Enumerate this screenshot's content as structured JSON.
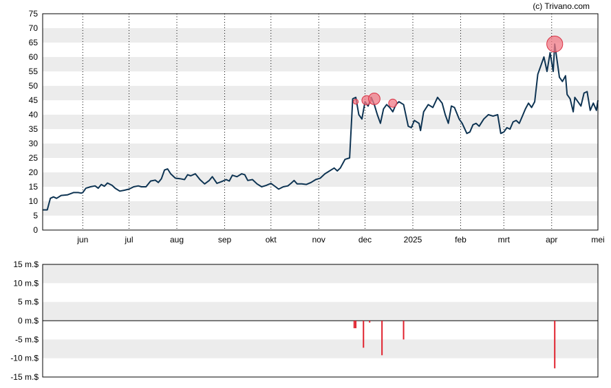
{
  "credit": "(c) Trivano.com",
  "colors": {
    "price_line": "#0d3352",
    "band": "#ececec",
    "vgrid": "#000000",
    "bubble_fill": "#f07a86",
    "bubble_stroke": "#d93043",
    "flow_bar": "#e0202c"
  },
  "chart_data": [
    {
      "type": "line",
      "title": "",
      "xlabel": "",
      "ylabel": "",
      "ylim": [
        0,
        75
      ],
      "yticks": [
        0,
        5,
        10,
        15,
        20,
        25,
        30,
        35,
        40,
        45,
        50,
        55,
        60,
        65,
        70,
        75
      ],
      "x_start": "2024-05-06",
      "x_end": "2025-05-01",
      "x_tick_labels": [
        {
          "date": "2024-06-01",
          "label": "jun"
        },
        {
          "date": "2024-07-01",
          "label": "jul"
        },
        {
          "date": "2024-08-01",
          "label": "aug"
        },
        {
          "date": "2024-09-01",
          "label": "sep"
        },
        {
          "date": "2024-10-01",
          "label": "okt"
        },
        {
          "date": "2024-11-01",
          "label": "nov"
        },
        {
          "date": "2024-12-01",
          "label": "dec"
        },
        {
          "date": "2025-01-01",
          "label": "2025"
        },
        {
          "date": "2025-02-01",
          "label": "feb"
        },
        {
          "date": "2025-03-01",
          "label": "mrt"
        },
        {
          "date": "2025-04-01",
          "label": "apr"
        },
        {
          "date": "2025-05-01",
          "label": "mei"
        }
      ],
      "grid": true,
      "series": [
        {
          "name": "",
          "points": [
            [
              "2024-05-06",
              7
            ],
            [
              "2024-05-09",
              7
            ],
            [
              "2024-05-11",
              11
            ],
            [
              "2024-05-13",
              11.5
            ],
            [
              "2024-05-15",
              11
            ],
            [
              "2024-05-18",
              12
            ],
            [
              "2024-05-22",
              12.2
            ],
            [
              "2024-05-26",
              13
            ],
            [
              "2024-05-29",
              13
            ],
            [
              "2024-05-31",
              12.8
            ],
            [
              "2024-06-01",
              13
            ],
            [
              "2024-06-03",
              14.5
            ],
            [
              "2024-06-06",
              15
            ],
            [
              "2024-06-09",
              15.3
            ],
            [
              "2024-06-11",
              14.5
            ],
            [
              "2024-06-13",
              15.8
            ],
            [
              "2024-06-15",
              15.2
            ],
            [
              "2024-06-17",
              16.3
            ],
            [
              "2024-06-20",
              15.5
            ],
            [
              "2024-06-22",
              14.5
            ],
            [
              "2024-06-25",
              13.5
            ],
            [
              "2024-06-28",
              13.8
            ],
            [
              "2024-07-01",
              14.2
            ],
            [
              "2024-07-04",
              15
            ],
            [
              "2024-07-07",
              15.3
            ],
            [
              "2024-07-09",
              15
            ],
            [
              "2024-07-12",
              15
            ],
            [
              "2024-07-15",
              17
            ],
            [
              "2024-07-18",
              17.3
            ],
            [
              "2024-07-20",
              16.5
            ],
            [
              "2024-07-22",
              17.8
            ],
            [
              "2024-07-24",
              20.8
            ],
            [
              "2024-07-26",
              21.2
            ],
            [
              "2024-07-28",
              19.5
            ],
            [
              "2024-07-31",
              18
            ],
            [
              "2024-08-03",
              17.8
            ],
            [
              "2024-08-06",
              17.5
            ],
            [
              "2024-08-08",
              19.2
            ],
            [
              "2024-08-10",
              18.8
            ],
            [
              "2024-08-13",
              19.5
            ],
            [
              "2024-08-16",
              17.5
            ],
            [
              "2024-08-19",
              16
            ],
            [
              "2024-08-22",
              17.2
            ],
            [
              "2024-08-24",
              18.5
            ],
            [
              "2024-08-27",
              16.2
            ],
            [
              "2024-08-30",
              16.8
            ],
            [
              "2024-09-02",
              17.5
            ],
            [
              "2024-09-04",
              17
            ],
            [
              "2024-09-06",
              19
            ],
            [
              "2024-09-09",
              18.5
            ],
            [
              "2024-09-12",
              19.5
            ],
            [
              "2024-09-14",
              19.2
            ],
            [
              "2024-09-16",
              17.2
            ],
            [
              "2024-09-19",
              17.5
            ],
            [
              "2024-09-22",
              16
            ],
            [
              "2024-09-25",
              15
            ],
            [
              "2024-09-28",
              15.5
            ],
            [
              "2024-10-01",
              16.2
            ],
            [
              "2024-10-04",
              15
            ],
            [
              "2024-10-06",
              14.2
            ],
            [
              "2024-10-09",
              15
            ],
            [
              "2024-10-12",
              15.3
            ],
            [
              "2024-10-14",
              16.2
            ],
            [
              "2024-10-16",
              17.2
            ],
            [
              "2024-10-18",
              16
            ],
            [
              "2024-10-21",
              16
            ],
            [
              "2024-10-24",
              15.8
            ],
            [
              "2024-10-27",
              16.5
            ],
            [
              "2024-10-30",
              17.5
            ],
            [
              "2024-11-02",
              18
            ],
            [
              "2024-11-05",
              19.5
            ],
            [
              "2024-11-08",
              20.5
            ],
            [
              "2024-11-11",
              21.5
            ],
            [
              "2024-11-13",
              20.5
            ],
            [
              "2024-11-15",
              21.5
            ],
            [
              "2024-11-18",
              24.5
            ],
            [
              "2024-11-21",
              25
            ],
            [
              "2024-11-23",
              45.5
            ],
            [
              "2024-11-25",
              46
            ],
            [
              "2024-11-27",
              40
            ],
            [
              "2024-11-29",
              38.5
            ],
            [
              "2024-12-01",
              44.5
            ],
            [
              "2024-12-03",
              43
            ],
            [
              "2024-12-05",
              46
            ],
            [
              "2024-12-07",
              43.5
            ],
            [
              "2024-12-09",
              40
            ],
            [
              "2024-12-11",
              37
            ],
            [
              "2024-12-13",
              42
            ],
            [
              "2024-12-15",
              43.5
            ],
            [
              "2024-12-17",
              42.5
            ],
            [
              "2024-12-19",
              41
            ],
            [
              "2024-12-21",
              43.5
            ],
            [
              "2024-12-23",
              44.5
            ],
            [
              "2024-12-26",
              43.5
            ],
            [
              "2024-12-29",
              36
            ],
            [
              "2024-12-31",
              35.5
            ],
            [
              "2025-01-02",
              38
            ],
            [
              "2025-01-05",
              37
            ],
            [
              "2025-01-06",
              34.5
            ],
            [
              "2025-01-08",
              41
            ],
            [
              "2025-01-11",
              43.5
            ],
            [
              "2025-01-14",
              42.5
            ],
            [
              "2025-01-17",
              46
            ],
            [
              "2025-01-20",
              44
            ],
            [
              "2025-01-22",
              40
            ],
            [
              "2025-01-24",
              37
            ],
            [
              "2025-01-26",
              43
            ],
            [
              "2025-01-28",
              42.5
            ],
            [
              "2025-01-31",
              38.5
            ],
            [
              "2025-02-02",
              37
            ],
            [
              "2025-02-05",
              33.5
            ],
            [
              "2025-02-07",
              34
            ],
            [
              "2025-02-09",
              36.5
            ],
            [
              "2025-02-11",
              37
            ],
            [
              "2025-02-13",
              36
            ],
            [
              "2025-02-16",
              38.5
            ],
            [
              "2025-02-19",
              40
            ],
            [
              "2025-02-22",
              39.5
            ],
            [
              "2025-02-25",
              40
            ],
            [
              "2025-02-27",
              33.5
            ],
            [
              "2025-03-01",
              34
            ],
            [
              "2025-03-03",
              35.5
            ],
            [
              "2025-03-05",
              35
            ],
            [
              "2025-03-07",
              37.5
            ],
            [
              "2025-03-09",
              38
            ],
            [
              "2025-03-11",
              37
            ],
            [
              "2025-03-13",
              39.5
            ],
            [
              "2025-03-15",
              42
            ],
            [
              "2025-03-17",
              44
            ],
            [
              "2025-03-19",
              42.5
            ],
            [
              "2025-03-21",
              44.5
            ],
            [
              "2025-03-23",
              54
            ],
            [
              "2025-03-25",
              57
            ],
            [
              "2025-03-27",
              60
            ],
            [
              "2025-03-29",
              55
            ],
            [
              "2025-03-31",
              61.5
            ],
            [
              "2025-04-02",
              55
            ],
            [
              "2025-04-03",
              64.5
            ],
            [
              "2025-04-05",
              57
            ],
            [
              "2025-04-06",
              53
            ],
            [
              "2025-04-08",
              51.5
            ],
            [
              "2025-04-10",
              53.5
            ],
            [
              "2025-04-11",
              47
            ],
            [
              "2025-04-13",
              45.5
            ],
            [
              "2025-04-15",
              41
            ],
            [
              "2025-04-16",
              46
            ],
            [
              "2025-04-18",
              44.5
            ],
            [
              "2025-04-20",
              43
            ],
            [
              "2025-04-22",
              47.5
            ],
            [
              "2025-04-24",
              48
            ],
            [
              "2025-04-26",
              41.5
            ],
            [
              "2025-04-28",
              44
            ],
            [
              "2025-04-30",
              41.5
            ],
            [
              "2025-05-01",
              45
            ]
          ]
        }
      ],
      "bubbles": [
        {
          "date": "2024-11-25",
          "value": 44.5,
          "size": 1
        },
        {
          "date": "2024-12-02",
          "value": 45,
          "size": 3
        },
        {
          "date": "2024-12-07",
          "value": 45.5,
          "size": 4
        },
        {
          "date": "2024-12-19",
          "value": 44,
          "size": 2.5
        },
        {
          "date": "2025-04-03",
          "value": 64.5,
          "size": 6
        }
      ]
    },
    {
      "type": "bar",
      "title": "",
      "xlabel": "",
      "ylabel": "",
      "ylim": [
        -15,
        15
      ],
      "yticks": [
        {
          "value": 15,
          "label": "15 m.$"
        },
        {
          "value": 10,
          "label": "10 m.$"
        },
        {
          "value": 5,
          "label": "5 m.$"
        },
        {
          "value": 0,
          "label": "0 m.$"
        },
        {
          "value": -5,
          "label": "-5 m.$"
        },
        {
          "value": -10,
          "label": "-10 m.$"
        },
        {
          "value": -15,
          "label": "-15 m.$"
        }
      ],
      "grid": false,
      "series": [
        {
          "name": "",
          "points": [
            [
              "2024-11-24",
              -2
            ],
            [
              "2024-11-25",
              -2
            ],
            [
              "2024-11-30",
              -7.2
            ],
            [
              "2024-12-04",
              -0.5
            ],
            [
              "2024-12-12",
              -9.2
            ],
            [
              "2024-12-26",
              -5
            ],
            [
              "2025-04-03",
              -12.7
            ]
          ]
        }
      ]
    }
  ]
}
